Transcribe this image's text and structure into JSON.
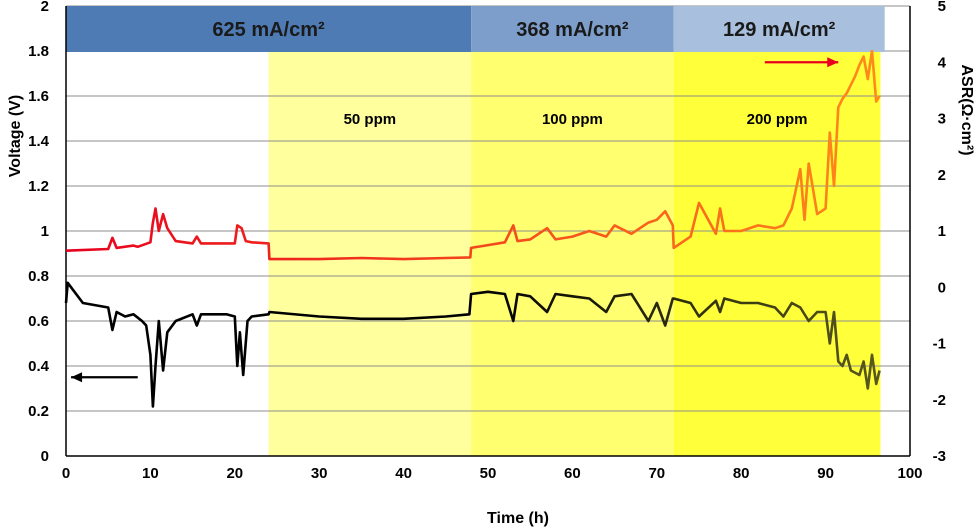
{
  "chart_data": {
    "type": "line",
    "xlabel": "Time (h)",
    "ylabel_left": "Voltage (V)",
    "ylabel_right": "ASR(Ω·cm²)",
    "xlim": [
      0,
      100
    ],
    "ylim_left": [
      0,
      2
    ],
    "ylim_right": [
      -3,
      5
    ],
    "x_ticks": [
      "0",
      "10",
      "20",
      "30",
      "40",
      "50",
      "60",
      "70",
      "80",
      "90",
      "100"
    ],
    "y_left_ticks": [
      "0",
      "0.2",
      "0.4",
      "0.6",
      "0.8",
      "1",
      "1.2",
      "1.4",
      "1.6",
      "1.8",
      "2"
    ],
    "y_right_ticks": [
      "-3",
      "-2",
      "-1",
      "0",
      "1",
      "2",
      "3",
      "4",
      "5"
    ],
    "grid": true,
    "current_density_bands": [
      {
        "label": "625 mA/cm²",
        "x_start": 0,
        "x_end": 48,
        "color": "#4f7bb5"
      },
      {
        "label": "368 mA/cm²",
        "x_start": 48,
        "x_end": 72,
        "color": "#7d9ecb"
      },
      {
        "label": "129 mA/cm²",
        "x_start": 72,
        "x_end": 97,
        "color": "#a8c0de"
      }
    ],
    "impurity_zones": [
      {
        "label": "50 ppm",
        "x_start": 24,
        "x_end": 48,
        "color": "#ffff9e"
      },
      {
        "label": "100 ppm",
        "x_start": 48,
        "x_end": 72,
        "color": "#ffff70"
      },
      {
        "label": "200 ppm",
        "x_start": 72,
        "x_end": 96.5,
        "color": "#ffff3a"
      }
    ],
    "series": [
      {
        "name": "ASR",
        "axis": "right",
        "color_start": "#e8001e",
        "color_end": "#ff8c1a",
        "x": [
          0,
          5,
          5.5,
          6,
          8,
          8.5,
          10,
          10.3,
          10.6,
          11,
          11.5,
          12,
          13,
          15,
          15.5,
          16,
          19,
          20,
          20.3,
          20.8,
          21.3,
          22,
          24,
          24.1,
          30,
          35,
          40,
          45,
          47.9,
          48,
          50,
          52,
          53,
          53.5,
          55,
          57,
          58,
          60,
          62,
          64,
          65,
          67,
          69,
          70,
          71,
          71.9,
          72,
          74,
          75,
          77,
          77.5,
          78,
          80,
          82,
          84,
          85,
          86,
          87,
          87.5,
          88,
          89,
          90,
          90.5,
          91,
          91.5,
          92,
          92.5,
          93,
          93.5,
          94,
          94.5,
          95,
          95.5,
          96,
          96.4
        ],
        "y": [
          0.65,
          0.68,
          0.88,
          0.7,
          0.74,
          0.72,
          0.8,
          1.15,
          1.4,
          1.0,
          1.3,
          1.05,
          0.82,
          0.78,
          0.9,
          0.78,
          0.78,
          0.78,
          1.1,
          1.05,
          0.82,
          0.8,
          0.78,
          0.5,
          0.5,
          0.52,
          0.5,
          0.52,
          0.53,
          0.7,
          0.75,
          0.8,
          1.1,
          0.82,
          0.85,
          1.05,
          0.85,
          0.9,
          1.0,
          0.9,
          1.1,
          0.95,
          1.15,
          1.2,
          1.35,
          1.1,
          0.7,
          0.9,
          1.5,
          0.95,
          1.4,
          1.0,
          1.0,
          1.1,
          1.05,
          1.1,
          1.4,
          2.1,
          1.2,
          2.2,
          1.3,
          1.4,
          2.75,
          1.8,
          3.2,
          3.35,
          3.45,
          3.6,
          3.75,
          3.95,
          4.1,
          3.7,
          4.2,
          3.3,
          3.4
        ]
      },
      {
        "name": "Voltage",
        "axis": "left",
        "color_start": "#000000",
        "color_end": "#5a5a1e",
        "x": [
          0,
          0.2,
          2,
          5,
          5.5,
          6,
          7,
          8,
          9,
          9.5,
          10,
          10.3,
          10.6,
          11,
          11.5,
          12,
          13,
          15,
          15.5,
          16,
          19,
          20,
          20.3,
          20.6,
          21,
          21.5,
          22,
          24,
          24.1,
          30,
          35,
          40,
          45,
          47.8,
          48,
          50,
          52,
          53,
          53.5,
          55,
          57,
          58,
          60,
          62,
          64,
          65,
          67,
          69,
          70,
          71,
          71.9,
          72,
          74,
          75,
          77,
          77.5,
          78,
          80,
          82,
          84,
          85,
          86,
          87,
          88,
          89,
          90,
          90.5,
          91,
          91.5,
          92,
          92.5,
          93,
          94,
          94.5,
          95,
          95.5,
          96,
          96.4
        ],
        "y": [
          0.68,
          0.77,
          0.68,
          0.66,
          0.56,
          0.64,
          0.62,
          0.63,
          0.6,
          0.58,
          0.45,
          0.22,
          0.4,
          0.6,
          0.38,
          0.55,
          0.6,
          0.63,
          0.58,
          0.63,
          0.63,
          0.62,
          0.4,
          0.55,
          0.36,
          0.6,
          0.62,
          0.63,
          0.64,
          0.62,
          0.61,
          0.61,
          0.62,
          0.63,
          0.72,
          0.73,
          0.72,
          0.6,
          0.72,
          0.71,
          0.64,
          0.72,
          0.71,
          0.7,
          0.64,
          0.71,
          0.72,
          0.6,
          0.68,
          0.58,
          0.7,
          0.7,
          0.68,
          0.62,
          0.69,
          0.64,
          0.7,
          0.68,
          0.68,
          0.66,
          0.62,
          0.68,
          0.66,
          0.6,
          0.64,
          0.64,
          0.5,
          0.64,
          0.42,
          0.4,
          0.45,
          0.38,
          0.36,
          0.42,
          0.3,
          0.45,
          0.32,
          0.38
        ]
      }
    ],
    "annotations": [
      {
        "type": "arrow",
        "direction": "left",
        "color": "#000000",
        "x_from": 8.5,
        "x_to": 0.6,
        "y_left": 0.35
      },
      {
        "type": "arrow",
        "direction": "right",
        "color": "#e8001e",
        "x_from": 82.8,
        "x_to": 91.5,
        "y_left": 1.75
      }
    ]
  }
}
